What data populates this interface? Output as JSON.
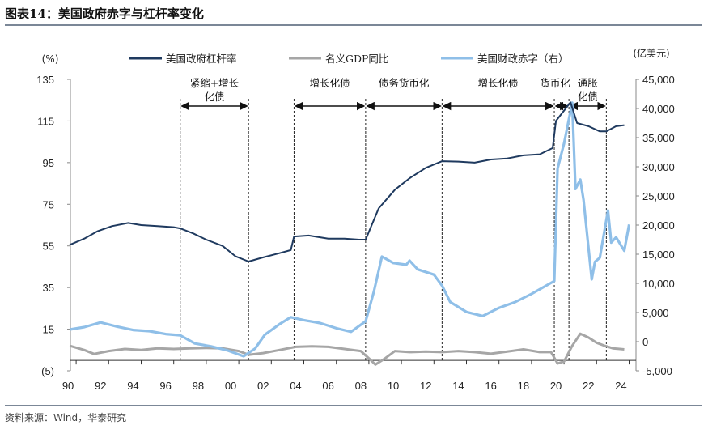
{
  "title": "图表14：美国政府赤字与杠杆率变化",
  "source": "资料来源：Wind，华泰研究",
  "chart_data": {
    "type": "line",
    "left_unit": "(%)",
    "right_unit": "(亿美元)",
    "ylim_left": [
      -5,
      135
    ],
    "yticks_left": [
      "(5)",
      "15",
      "35",
      "55",
      "75",
      "95",
      "115",
      "135"
    ],
    "yticks_left_values": [
      -5,
      15,
      35,
      55,
      75,
      95,
      115,
      135
    ],
    "ylim_right": [
      -5000,
      45000
    ],
    "yticks_right": [
      "-5,000",
      "0",
      "5,000",
      "10,000",
      "15,000",
      "20,000",
      "25,000",
      "30,000",
      "35,000",
      "40,000",
      "45,000"
    ],
    "yticks_right_values": [
      -5000,
      0,
      5000,
      10000,
      15000,
      20000,
      25000,
      30000,
      35000,
      40000,
      45000
    ],
    "xticks": [
      "90",
      "92",
      "94",
      "96",
      "98",
      "00",
      "02",
      "04",
      "06",
      "08",
      "10",
      "12",
      "14",
      "16",
      "18",
      "20",
      "22",
      "24"
    ],
    "grid": false,
    "legend_position": "top",
    "series": [
      {
        "name": "美国政府杠杆率",
        "axis": "left",
        "color": "#1f3a5f",
        "x": [
          1990.6,
          1991.5,
          1992.3,
          1993.2,
          1994.2,
          1995,
          1996,
          1997,
          1997.4,
          1998.2,
          1999,
          2000,
          2000.8,
          2001.6,
          2002.5,
          2003.5,
          2004.2,
          2004.4,
          2005.3,
          2006.5,
          2007.5,
          2008.4,
          2008.8,
          2009.6,
          2010.6,
          2011.5,
          2012.5,
          2013.5,
          2014.5,
          2015.5,
          2016.5,
          2017.5,
          2018.5,
          2019.5,
          2020.3,
          2020.5,
          2021,
          2021.4,
          2021.8,
          2022.5,
          2023.2,
          2023.6,
          2024.2,
          2024.7
        ],
        "y": [
          55.5,
          58.5,
          62,
          64.5,
          66,
          65,
          64.5,
          64,
          63.4,
          61,
          58,
          55,
          50,
          47.5,
          49.5,
          51.5,
          53,
          59.5,
          60,
          58.5,
          58.5,
          58,
          58,
          73,
          82,
          87.5,
          92.5,
          95.7,
          95.5,
          95,
          96.5,
          97,
          98.5,
          99,
          102,
          115,
          120,
          124,
          114,
          112.5,
          110,
          110,
          112.5,
          113
        ]
      },
      {
        "name": "名义GDP同比",
        "axis": "left",
        "color": "#a6a6a6",
        "x": [
          1990.6,
          1991.5,
          1992.1,
          1993,
          1994,
          1995,
          1996,
          1997,
          1998,
          1999,
          2000,
          2001,
          2001.6,
          2002.5,
          2003.5,
          2004.5,
          2005.5,
          2006.5,
          2007.5,
          2008.5,
          2009,
          2009.4,
          2010,
          2010.6,
          2011.5,
          2012.5,
          2013.5,
          2014.5,
          2015.5,
          2016.5,
          2017.5,
          2018.5,
          2019.5,
          2020.2,
          2020.6,
          2021,
          2021.5,
          2022,
          2022.5,
          2023,
          2023.5,
          2024,
          2024.7
        ],
        "y": [
          7,
          5,
          3.1,
          4.5,
          5.5,
          5,
          5.8,
          5.5,
          5.8,
          6,
          5.8,
          4.5,
          2.7,
          3.5,
          5,
          6.5,
          6.8,
          6.5,
          5.5,
          4.5,
          1,
          -2,
          1,
          4.5,
          4,
          4.2,
          4,
          4.5,
          4,
          3.2,
          4.2,
          5.3,
          4,
          4,
          -1.5,
          -0.5,
          7,
          12.8,
          11,
          8.5,
          7,
          5.8,
          5.3
        ]
      },
      {
        "name": "美国财政赤字（右）",
        "axis": "right",
        "color": "#8fbfe8",
        "x": [
          1990.6,
          1991.5,
          1992.5,
          1993.5,
          1994.5,
          1995.5,
          1996.5,
          1997.4,
          1998.3,
          1999.3,
          2000.3,
          2001.3,
          2002,
          2002.6,
          2003.5,
          2004.2,
          2005,
          2006,
          2007,
          2007.9,
          2008.8,
          2009.3,
          2009.8,
          2010.5,
          2011.3,
          2011.5,
          2012,
          2013,
          2013.5,
          2014,
          2015,
          2016,
          2017,
          2018,
          2019,
          2020.4,
          2020.6,
          2021,
          2021.5,
          2021.7,
          2022,
          2022.2,
          2022.7,
          2022.9,
          2023.2,
          2023.7,
          2023.9,
          2024.2,
          2024.7,
          2025
        ],
        "y": [
          2080,
          2500,
          3300,
          2600,
          2000,
          1800,
          1300,
          1100,
          -300,
          -800,
          -1500,
          -2500,
          -1200,
          1200,
          3000,
          4200,
          3700,
          3200,
          2300,
          1700,
          3500,
          8500,
          14600,
          13500,
          13200,
          13900,
          12400,
          11500,
          9600,
          6800,
          5100,
          4400,
          5800,
          6800,
          8200,
          10400,
          29700,
          34000,
          41000,
          26200,
          27800,
          24300,
          10700,
          13700,
          14400,
          22500,
          17000,
          17900,
          15600,
          20100
        ]
      }
    ],
    "periods": [
      {
        "label": "紧缩+增长\n化债",
        "from": 1997.4,
        "to": 2001.6
      },
      {
        "label": "增长化债",
        "from": 2001.6,
        "to": 2004.4,
        "arrow": false
      },
      {
        "label": "增长化债",
        "from": 2004.4,
        "to": 2008.8
      },
      {
        "label": "债务货币化",
        "from": 2008.8,
        "to": 2013.5
      },
      {
        "label": "增长化债",
        "from": 2013.5,
        "to": 2020.4
      },
      {
        "label": "货币化",
        "from": 2020.4,
        "to": 2021.3
      },
      {
        "label": "通胀\n化债",
        "from": 2021.3,
        "to": 2023.6
      }
    ]
  }
}
